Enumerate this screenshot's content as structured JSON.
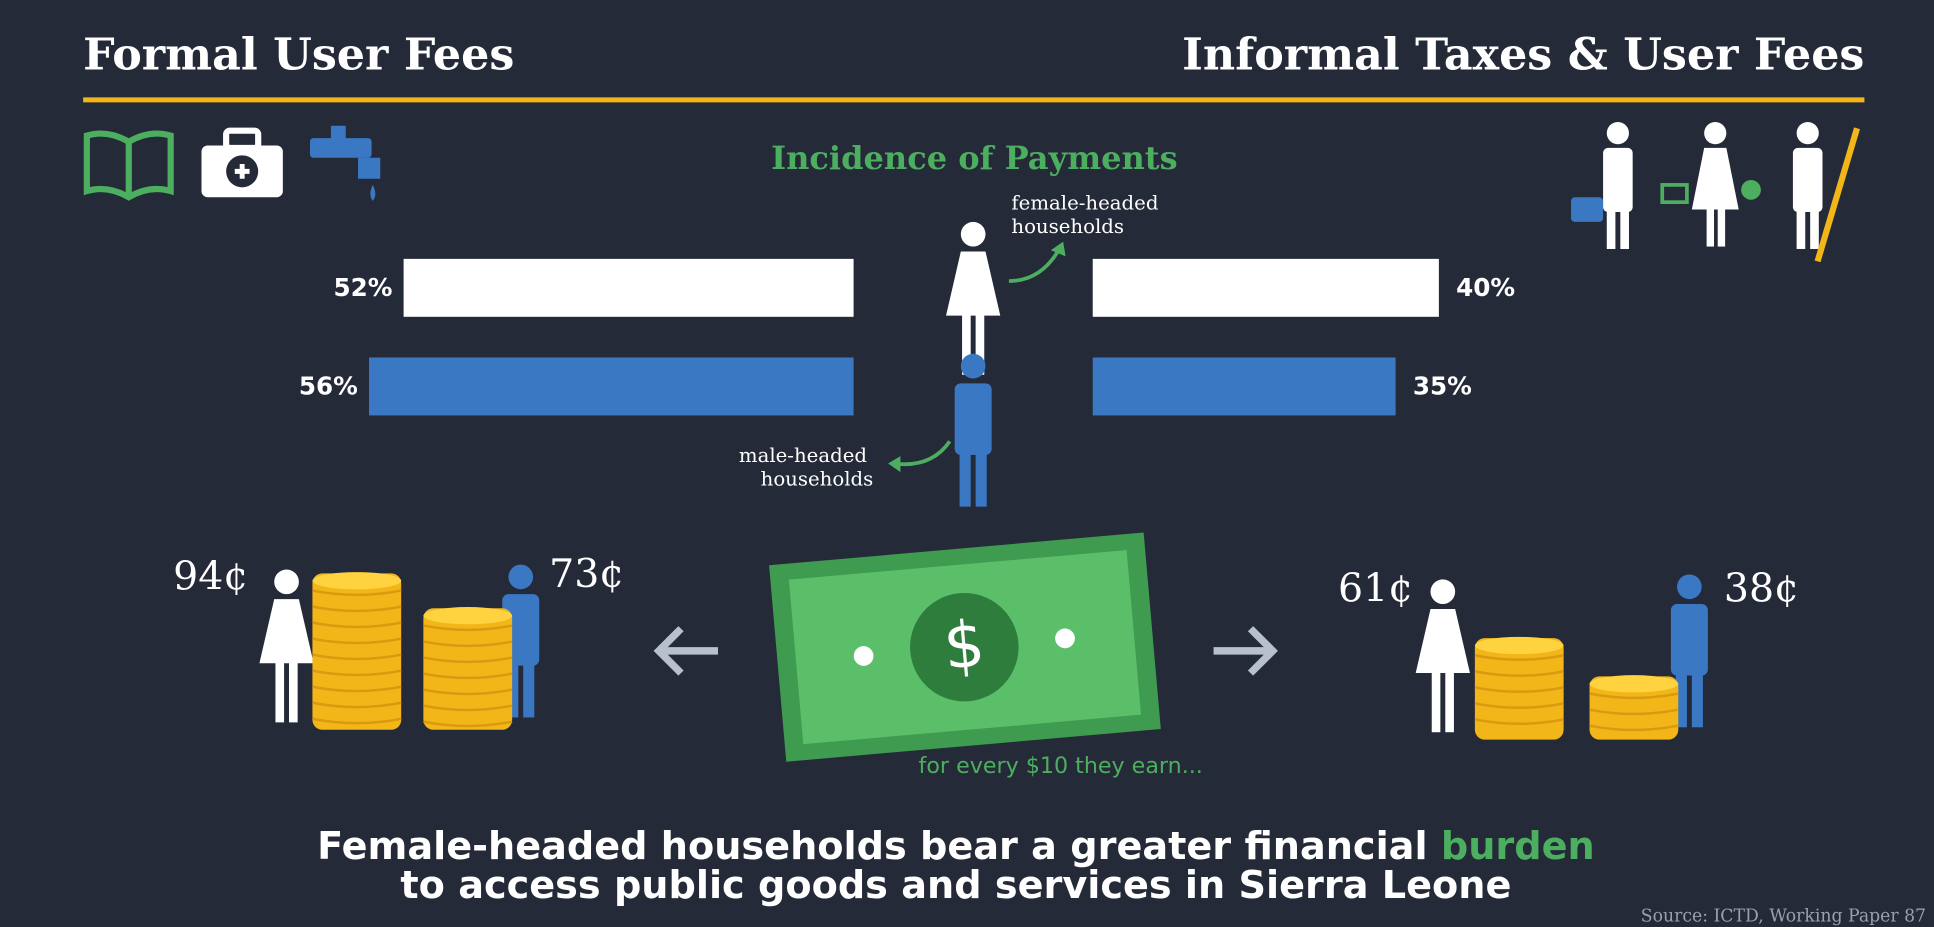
{
  "header": {
    "left": "Formal User Fees",
    "right": "Informal Taxes & User Fees"
  },
  "subtitle": "Incidence of Payments",
  "legend": {
    "female": [
      "female-headed",
      "households"
    ],
    "male": [
      "male-headed",
      "households"
    ]
  },
  "colors": {
    "female": "#ffffff",
    "male": "#3b78c3"
  },
  "bars": {
    "formal": {
      "values": [
        52,
        56
      ],
      "value_labels": [
        "52%",
        "56%"
      ]
    },
    "informal": {
      "values": [
        40,
        35
      ],
      "value_labels": [
        "40%",
        "35%"
      ]
    }
  },
  "payments": {
    "formal": {
      "values": [
        94,
        73
      ],
      "value_labels": [
        "94¢",
        "73¢"
      ]
    },
    "informal": {
      "values": [
        61,
        38
      ],
      "value_labels": [
        "61¢",
        "38¢"
      ]
    }
  },
  "bill_symbol": "$",
  "note": "for every $10 they earn...",
  "conclusion": {
    "line1": "Female-headed households bear a greater financial",
    "highlight": "burden",
    "line2": "to access public goods and services in Sierra Leone"
  },
  "source": "Source: ICTD, Working Paper 87"
}
